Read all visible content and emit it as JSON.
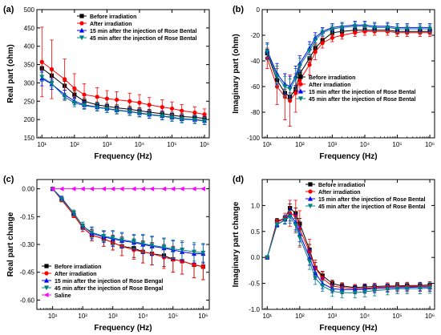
{
  "chart_data": [
    {
      "panel": "(a)",
      "type": "line",
      "xlabel": "Frequency (Hz)",
      "ylabel": "Real part (ohm)",
      "xscale": "log",
      "x_ticks": [
        "10¹",
        "10²",
        "10³",
        "10⁴",
        "10⁵",
        "10⁶"
      ],
      "y_ticks": [
        "150",
        "200",
        "250",
        "300",
        "350",
        "400",
        "450",
        "500"
      ],
      "xlim": [
        7,
        1400000
      ],
      "ylim": [
        150,
        500
      ],
      "x": [
        10,
        20,
        50,
        100,
        200,
        500,
        1000,
        2000,
        5000,
        10000,
        20000,
        50000,
        100000,
        200000,
        500000,
        1000000
      ],
      "legend_position": "top-right",
      "series": [
        {
          "name": "Before irradiation",
          "color": "#000000",
          "marker": "square",
          "values": [
            340,
            320,
            292,
            268,
            250,
            240,
            236,
            232,
            228,
            224,
            220,
            216,
            212,
            208,
            206,
            203
          ],
          "errors": [
            20,
            15,
            12,
            10,
            9,
            8,
            8,
            8,
            8,
            8,
            8,
            8,
            8,
            8,
            8,
            8
          ]
        },
        {
          "name": "After irradiation",
          "color": "#ff0000",
          "marker": "circle",
          "values": [
            357,
            337,
            310,
            285,
            268,
            262,
            257,
            254,
            250,
            246,
            240,
            234,
            230,
            224,
            219,
            214
          ],
          "errors": [
            95,
            80,
            55,
            40,
            30,
            25,
            22,
            22,
            22,
            22,
            20,
            20,
            18,
            17,
            15,
            15
          ]
        },
        {
          "name": "15 min after the injection of Rose Bental",
          "color": "#0000ff",
          "marker": "triangle-up",
          "values": [
            312,
            297,
            268,
            250,
            240,
            234,
            230,
            226,
            222,
            218,
            214,
            210,
            206,
            202,
            200,
            197
          ],
          "errors": [
            20,
            15,
            12,
            10,
            10,
            10,
            10,
            10,
            10,
            10,
            10,
            10,
            10,
            10,
            10,
            10
          ]
        },
        {
          "name": "45 min after the injection of Rose Bental",
          "color": "#008080",
          "marker": "triangle-down",
          "values": [
            316,
            298,
            262,
            245,
            238,
            233,
            229,
            225,
            221,
            217,
            213,
            209,
            205,
            201,
            199,
            196
          ],
          "errors": [
            12,
            10,
            10,
            10,
            10,
            10,
            10,
            10,
            10,
            10,
            10,
            10,
            10,
            10,
            10,
            10
          ]
        }
      ]
    },
    {
      "panel": "(b)",
      "type": "line",
      "xlabel": "Frequency (Hz)",
      "ylabel": "Imaginary part (ohm)",
      "xscale": "log",
      "x_ticks": [
        "10¹",
        "10²",
        "10³",
        "10⁴",
        "10⁵",
        "10⁶"
      ],
      "y_ticks": [
        "-100",
        "-80",
        "-60",
        "-40",
        "-20",
        "0"
      ],
      "xlim": [
        7,
        1400000
      ],
      "ylim": [
        -100,
        0
      ],
      "x": [
        10,
        20,
        35,
        50,
        75,
        100,
        200,
        300,
        500,
        1000,
        2000,
        5000,
        10000,
        20000,
        50000,
        100000,
        200000,
        500000,
        1000000
      ],
      "legend_position": "bottom-right",
      "series": [
        {
          "name": "Before irradiation",
          "color": "#000000",
          "marker": "square",
          "values": [
            -34,
            -55,
            -65,
            -68,
            -62,
            -50,
            -38,
            -30,
            -24,
            -18,
            -17,
            -16,
            -16,
            -16,
            -16,
            -17,
            -17,
            -17,
            -17
          ],
          "errors": [
            3,
            3,
            3,
            3,
            3,
            3,
            3,
            3,
            2,
            2,
            2,
            2,
            2,
            2,
            2,
            2,
            2,
            2,
            2
          ]
        },
        {
          "name": "After irradiation",
          "color": "#ff0000",
          "marker": "circle",
          "values": [
            -38,
            -60,
            -68,
            -71,
            -65,
            -55,
            -43,
            -33,
            -26,
            -22,
            -20,
            -18,
            -17,
            -17,
            -17,
            -18,
            -18,
            -18,
            -18
          ],
          "errors": [
            8,
            14,
            18,
            20,
            15,
            10,
            8,
            6,
            4,
            3,
            3,
            3,
            3,
            3,
            3,
            3,
            3,
            3,
            3
          ]
        },
        {
          "name": "15 min after the injection of Rose Bental",
          "color": "#0000ff",
          "marker": "triangle-up",
          "values": [
            -32,
            -50,
            -58,
            -60,
            -52,
            -42,
            -30,
            -22,
            -17,
            -14,
            -13,
            -12,
            -12,
            -13,
            -13,
            -14,
            -14,
            -14,
            -14
          ],
          "errors": [
            6,
            8,
            8,
            8,
            8,
            6,
            5,
            4,
            3,
            3,
            3,
            3,
            3,
            3,
            3,
            3,
            3,
            3,
            3
          ]
        },
        {
          "name": "45 min after the injection of Rose Bental",
          "color": "#008080",
          "marker": "triangle-down",
          "values": [
            -33,
            -52,
            -60,
            -62,
            -54,
            -44,
            -32,
            -24,
            -18,
            -15,
            -14,
            -13,
            -13,
            -14,
            -14,
            -15,
            -15,
            -15,
            -15
          ],
          "errors": [
            6,
            8,
            8,
            8,
            8,
            6,
            5,
            4,
            3,
            3,
            3,
            3,
            3,
            3,
            3,
            3,
            3,
            3,
            3
          ]
        }
      ]
    },
    {
      "panel": "(c)",
      "type": "line",
      "xlabel": "Frequency (Hz)",
      "ylabel": "Real part change",
      "xscale": "log",
      "x_ticks": [
        "10¹",
        "10²",
        "10³",
        "10⁴",
        "10⁵",
        "10⁶"
      ],
      "y_ticks": [
        "-0.60",
        "-0.45",
        "-0.30",
        "-0.15",
        "0.00"
      ],
      "xlim": [
        3,
        1600000
      ],
      "ylim": [
        -0.65,
        0.05
      ],
      "x": [
        10,
        20,
        50,
        100,
        200,
        500,
        1000,
        2000,
        5000,
        10000,
        20000,
        50000,
        100000,
        200000,
        500000,
        1000000
      ],
      "legend_position": "bottom-left",
      "series": [
        {
          "name": "Before irradiation",
          "color": "#000000",
          "marker": "square",
          "values": [
            0,
            -0.06,
            -0.14,
            -0.21,
            -0.25,
            -0.27,
            -0.29,
            -0.31,
            -0.32,
            -0.34,
            -0.35,
            -0.36,
            -0.38,
            -0.39,
            -0.41,
            -0.42
          ],
          "errors": [
            0.005,
            0.01,
            0.015,
            0.02,
            0.03,
            0.04,
            0.04,
            0.05,
            0.05,
            0.06,
            0.06,
            0.06,
            0.07,
            0.07,
            0.07,
            0.07
          ]
        },
        {
          "name": "After irradiation",
          "color": "#ff0000",
          "marker": "circle",
          "values": [
            0,
            -0.06,
            -0.14,
            -0.21,
            -0.25,
            -0.27,
            -0.29,
            -0.31,
            -0.33,
            -0.34,
            -0.35,
            -0.37,
            -0.38,
            -0.39,
            -0.41,
            -0.42
          ],
          "errors": [
            0.005,
            0.01,
            0.015,
            0.02,
            0.03,
            0.04,
            0.04,
            0.05,
            0.05,
            0.06,
            0.06,
            0.06,
            0.07,
            0.07,
            0.07,
            0.07
          ]
        },
        {
          "name": "15 min after the injection of Rose Bengal",
          "color": "#0000ff",
          "marker": "triangle-up",
          "values": [
            0,
            -0.05,
            -0.13,
            -0.2,
            -0.24,
            -0.26,
            -0.27,
            -0.28,
            -0.29,
            -0.3,
            -0.31,
            -0.32,
            -0.33,
            -0.34,
            -0.35,
            -0.35
          ],
          "errors": [
            0.005,
            0.01,
            0.015,
            0.02,
            0.03,
            0.03,
            0.04,
            0.04,
            0.04,
            0.05,
            0.05,
            0.05,
            0.05,
            0.05,
            0.05,
            0.05
          ]
        },
        {
          "name": "45 min after the injection of Rose Bengal",
          "color": "#008080",
          "marker": "triangle-down",
          "values": [
            0,
            -0.055,
            -0.13,
            -0.2,
            -0.235,
            -0.255,
            -0.265,
            -0.275,
            -0.285,
            -0.295,
            -0.305,
            -0.315,
            -0.325,
            -0.33,
            -0.34,
            -0.345
          ],
          "errors": [
            0.005,
            0.01,
            0.015,
            0.02,
            0.03,
            0.03,
            0.04,
            0.04,
            0.04,
            0.05,
            0.05,
            0.05,
            0.05,
            0.05,
            0.05,
            0.05
          ]
        },
        {
          "name": "Saline",
          "color": "#ff00ff",
          "marker": "triangle-left",
          "values": [
            0,
            0,
            0,
            0,
            0,
            0,
            0,
            0,
            0,
            0,
            0,
            0,
            0,
            0,
            0,
            0
          ],
          "errors": [
            0,
            0,
            0,
            0,
            0,
            0,
            0,
            0,
            0,
            0,
            0,
            0,
            0,
            0,
            0,
            0
          ]
        }
      ]
    },
    {
      "panel": "(d)",
      "type": "line",
      "xlabel": "Frequency (Hz)",
      "ylabel": "Imaginary part change",
      "xscale": "log",
      "x_ticks": [
        "10¹",
        "10²",
        "10³",
        "10⁴",
        "10⁵",
        "10⁶"
      ],
      "y_ticks": [
        "-1.0",
        "-0.5",
        "0.0",
        "0.5",
        "1.0"
      ],
      "xlim": [
        7,
        1400000
      ],
      "ylim": [
        -1.0,
        1.5
      ],
      "x": [
        10,
        20,
        35,
        50,
        75,
        100,
        200,
        300,
        500,
        1000,
        2000,
        5000,
        10000,
        20000,
        50000,
        100000,
        200000,
        500000,
        1000000
      ],
      "legend_position": "top-right",
      "series": [
        {
          "name": "Before irradiation",
          "color": "#000000",
          "marker": "square",
          "values": [
            0,
            0.7,
            0.75,
            0.95,
            0.85,
            0.65,
            0.15,
            -0.2,
            -0.35,
            -0.5,
            -0.55,
            -0.58,
            -0.57,
            -0.56,
            -0.55,
            -0.55,
            -0.54,
            -0.54,
            -0.53
          ],
          "errors": [
            0.02,
            0.05,
            0.05,
            0.08,
            0.1,
            0.1,
            0.1,
            0.1,
            0.08,
            0.06,
            0.06,
            0.06,
            0.06,
            0.06,
            0.06,
            0.06,
            0.06,
            0.06,
            0.06
          ]
        },
        {
          "name": "After irradiation",
          "color": "#ff0000",
          "marker": "circle",
          "values": [
            0,
            0.68,
            0.75,
            0.85,
            0.8,
            0.55,
            0.1,
            -0.2,
            -0.4,
            -0.55,
            -0.58,
            -0.6,
            -0.6,
            -0.58,
            -0.57,
            -0.56,
            -0.56,
            -0.56,
            -0.55
          ],
          "errors": [
            0.02,
            0.05,
            0.1,
            0.25,
            0.3,
            0.35,
            0.25,
            0.15,
            0.12,
            0.1,
            0.08,
            0.08,
            0.08,
            0.08,
            0.08,
            0.08,
            0.08,
            0.08,
            0.08
          ]
        },
        {
          "name": "15 min after the injection of Rose Bental",
          "color": "#0000ff",
          "marker": "triangle-up",
          "values": [
            0,
            0.63,
            0.73,
            0.82,
            0.68,
            0.45,
            0.0,
            -0.3,
            -0.5,
            -0.6,
            -0.62,
            -0.62,
            -0.61,
            -0.6,
            -0.59,
            -0.58,
            -0.58,
            -0.57,
            -0.57
          ],
          "errors": [
            0.02,
            0.05,
            0.08,
            0.12,
            0.15,
            0.15,
            0.15,
            0.12,
            0.1,
            0.08,
            0.08,
            0.08,
            0.08,
            0.08,
            0.08,
            0.08,
            0.08,
            0.08,
            0.08
          ]
        },
        {
          "name": "45 min after the injection of Rose Bental",
          "color": "#008080",
          "marker": "triangle-down",
          "values": [
            0,
            0.63,
            0.72,
            0.78,
            0.62,
            0.38,
            -0.08,
            -0.4,
            -0.55,
            -0.65,
            -0.68,
            -0.68,
            -0.66,
            -0.64,
            -0.62,
            -0.6,
            -0.6,
            -0.6,
            -0.59
          ],
          "errors": [
            0.02,
            0.05,
            0.08,
            0.12,
            0.15,
            0.15,
            0.15,
            0.12,
            0.1,
            0.1,
            0.1,
            0.1,
            0.1,
            0.1,
            0.1,
            0.1,
            0.1,
            0.1,
            0.1
          ]
        }
      ]
    }
  ]
}
